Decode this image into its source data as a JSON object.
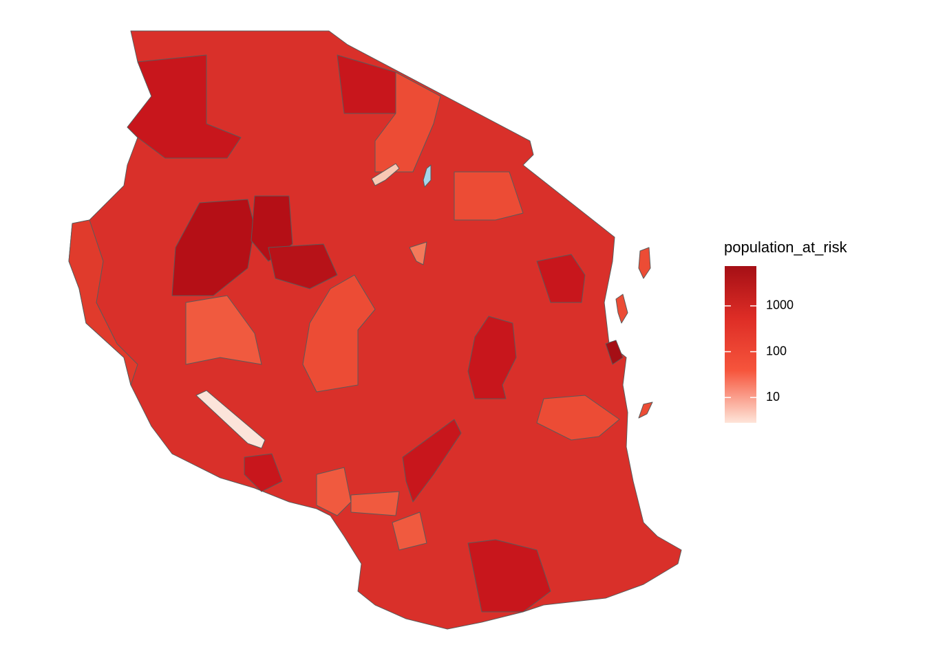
{
  "chart_data": {
    "type": "choropleth",
    "legend": {
      "title": "population_at_risk",
      "scale": "log",
      "lim": [
        2.8,
        7400
      ],
      "ticks": [
        10,
        100,
        1000
      ],
      "colors": [
        "#fee5d9",
        "#f6553c",
        "#de2d26",
        "#a50f15"
      ]
    }
  }
}
